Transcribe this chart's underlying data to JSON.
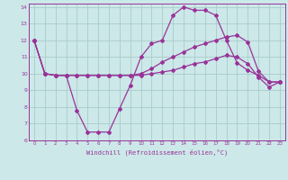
{
  "xlabel": "Windchill (Refroidissement éolien,°C)",
  "xlim": [
    -0.5,
    23.5
  ],
  "ylim": [
    6,
    14.2
  ],
  "yticks": [
    6,
    7,
    8,
    9,
    10,
    11,
    12,
    13,
    14
  ],
  "xticks": [
    0,
    1,
    2,
    3,
    4,
    5,
    6,
    7,
    8,
    9,
    10,
    11,
    12,
    13,
    14,
    15,
    16,
    17,
    18,
    19,
    20,
    21,
    22,
    23
  ],
  "bg_color": "#cce8e8",
  "grid_color": "#aacccc",
  "line_color": "#993399",
  "line1_y": [
    12,
    10,
    9.9,
    9.9,
    7.8,
    6.5,
    6.5,
    6.5,
    7.9,
    9.3,
    11.0,
    11.8,
    12.0,
    13.5,
    14.0,
    13.8,
    13.8,
    13.5,
    12.0,
    10.65,
    10.2,
    9.9,
    9.5,
    9.5
  ],
  "line2_y": [
    12,
    10,
    9.9,
    9.9,
    9.9,
    9.9,
    9.9,
    9.9,
    9.9,
    9.9,
    10.0,
    10.3,
    10.7,
    11.0,
    11.3,
    11.6,
    11.8,
    12.0,
    12.2,
    12.3,
    11.9,
    10.15,
    9.5,
    9.5
  ],
  "line3_y": [
    12,
    10,
    9.9,
    9.9,
    9.9,
    9.9,
    9.9,
    9.9,
    9.9,
    9.9,
    9.9,
    10.0,
    10.1,
    10.2,
    10.4,
    10.6,
    10.7,
    10.9,
    11.1,
    11.0,
    10.6,
    9.8,
    9.2,
    9.5
  ]
}
